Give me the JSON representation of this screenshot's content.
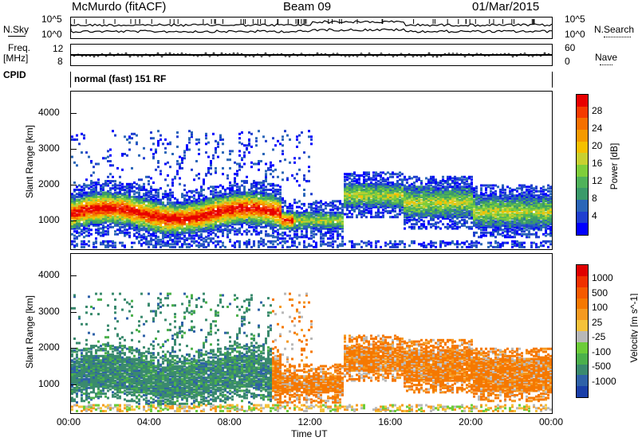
{
  "header": {
    "radar": "McMurdo (fitACF)",
    "beam": "Beam 09",
    "date": "01/Mar/2015"
  },
  "panels": {
    "nsky_label": "N.Sky",
    "nsky_ticks": [
      "10^5",
      "10^0"
    ],
    "nsearch_label": "N.Search",
    "nsearch_ticks": [
      "10^5",
      "10^0"
    ],
    "freq_label": "Freq.",
    "freq_unit": "[MHz]",
    "freq_ticks": [
      "12",
      "8"
    ],
    "nave_label": "Nave",
    "nave_ticks": [
      "60",
      "0"
    ],
    "cpid_label": "CPID",
    "cpid_text": "normal (fast) 151 RF"
  },
  "chart_data": [
    {
      "type": "heatmap",
      "name": "power",
      "ylabel": "Slant Range [km]",
      "yticks": [
        "4000",
        "3000",
        "2000",
        "1000"
      ],
      "ylim": [
        200,
        4600
      ],
      "colorbar_label": "Power [dB]",
      "colorbar_ticks": [
        "28",
        "24",
        "20",
        "16",
        "12",
        "8",
        "4"
      ],
      "colors": [
        "#0000ff",
        "#1f3fd0",
        "#2a66b8",
        "#3a9a6a",
        "#4fb25a",
        "#7fce3a",
        "#c8d030",
        "#f5c000",
        "#f59a00",
        "#f57000",
        "#f53a00",
        "#e80000"
      ]
    },
    {
      "type": "heatmap",
      "name": "velocity",
      "ylabel": "Slant Range [km]",
      "yticks": [
        "4000",
        "3000",
        "2000",
        "1000"
      ],
      "ylim": [
        200,
        4600
      ],
      "colorbar_label": "Velocity [m s^-1]",
      "colorbar_ticks": [
        "1000",
        "500",
        "100",
        "25",
        "-25",
        "-100",
        "-500",
        "-1000"
      ],
      "colors": [
        "#1a3fa8",
        "#2f62a8",
        "#3a8a6e",
        "#4bb04b",
        "#6ccc38",
        "#b8b8b8",
        "#f5c23a",
        "#f59a20",
        "#f57800",
        "#f55a00",
        "#f03000",
        "#e00000"
      ]
    }
  ],
  "xaxis": {
    "ticks": [
      "00:00",
      "04:00",
      "08:00",
      "12:00",
      "16:00",
      "20:00",
      "00:00"
    ],
    "label": "Time UT"
  }
}
